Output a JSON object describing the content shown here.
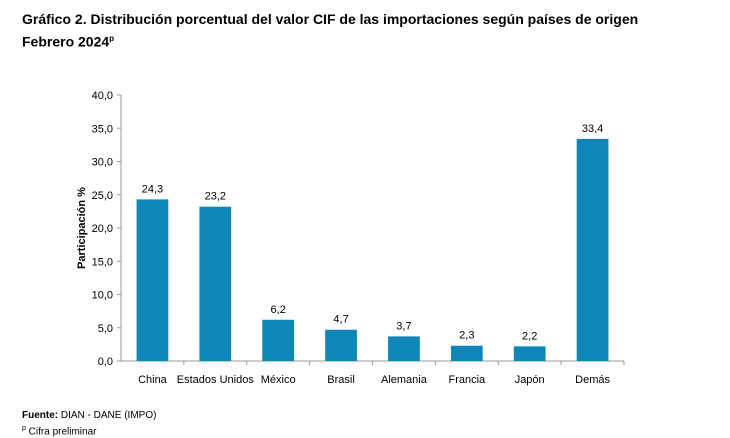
{
  "title": {
    "line1": "Gráfico 2. Distribución porcentual del valor CIF de las importaciones según países de origen",
    "line2": "Febrero 2024",
    "line2_sup": "p"
  },
  "footer": {
    "source_label": "Fuente:",
    "source_text": " DIAN - DANE (IMPO)",
    "note_sup": "p",
    "note_text": " Cifra preliminar"
  },
  "chart_data": {
    "type": "bar",
    "categories": [
      "China",
      "Estados Unidos",
      "México",
      "Brasil",
      "Alemania",
      "Francia",
      "Japón",
      "Demás"
    ],
    "values": [
      24.3,
      23.2,
      6.2,
      4.7,
      3.7,
      2.3,
      2.2,
      33.4
    ],
    "value_labels": [
      "24,3",
      "23,2",
      "6,2",
      "4,7",
      "3,7",
      "2,3",
      "2,2",
      "33,4"
    ],
    "ylabel": "Participación %",
    "ylim": [
      0,
      40
    ],
    "yticks": [
      0,
      5,
      10,
      15,
      20,
      25,
      30,
      35,
      40
    ],
    "ytick_labels": [
      "0,0",
      "5,0",
      "10,0",
      "15,0",
      "20,0",
      "25,0",
      "30,0",
      "35,0",
      "40,0"
    ],
    "bar_color": "#0E86B8",
    "grid": false,
    "legend": "none"
  }
}
